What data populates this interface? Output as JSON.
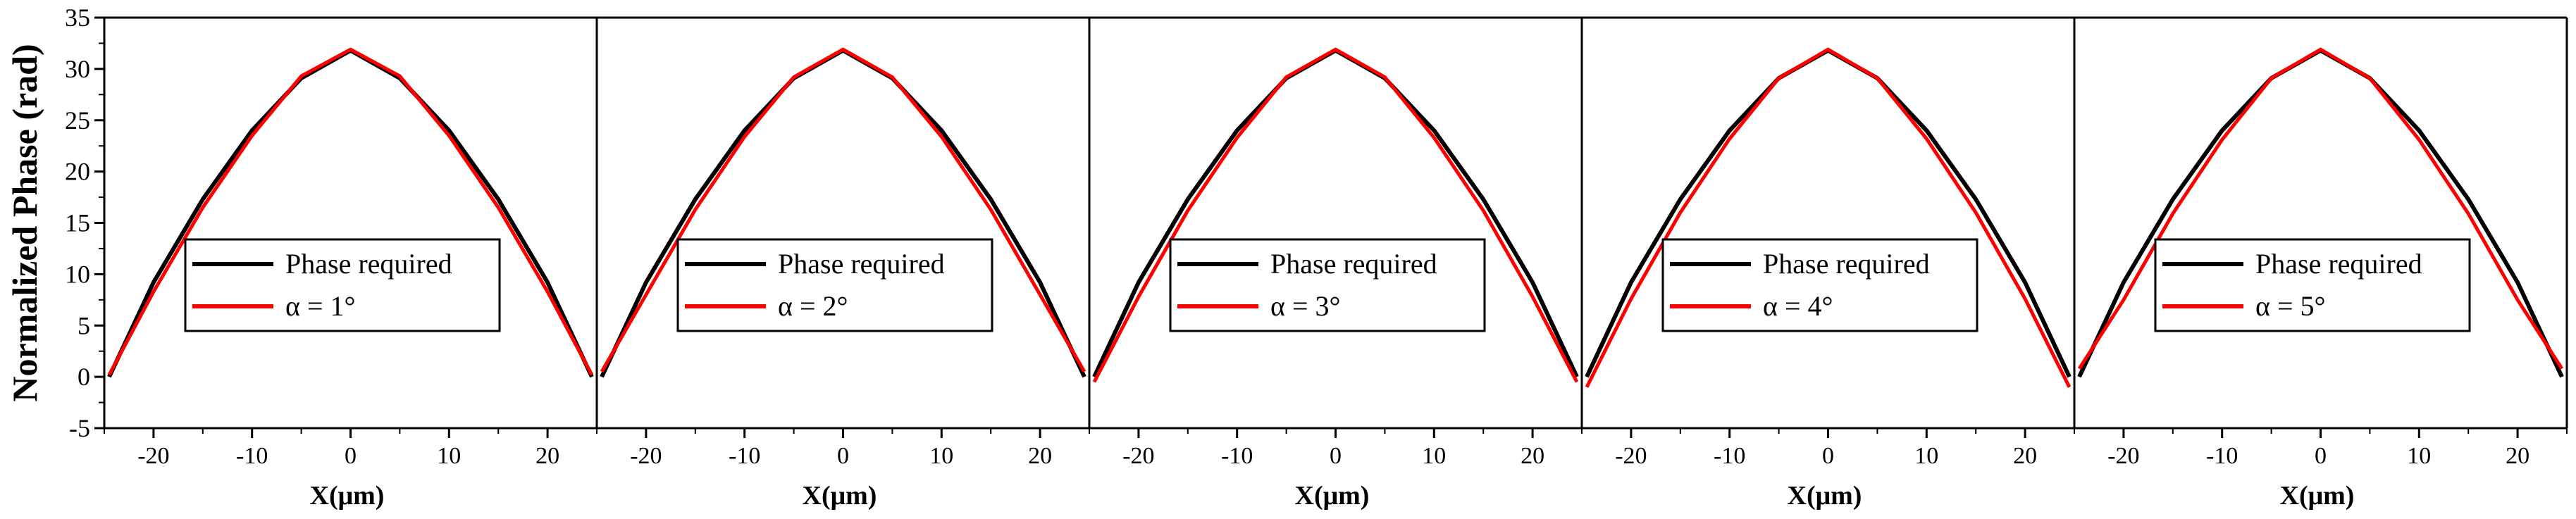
{
  "figure": {
    "ylabel": "Normalized Phase (rad)",
    "xlabel": "X(μm)",
    "y_ticks": [
      -5,
      0,
      5,
      10,
      15,
      20,
      25,
      30,
      35
    ],
    "x_ticks": [
      -20,
      -10,
      0,
      10,
      20
    ],
    "colors": {
      "required": "#000000",
      "simulated": "#ff0000",
      "axis": "#000000"
    }
  },
  "chart_data": [
    {
      "type": "line",
      "title": "",
      "xlabel": "X(μm)",
      "ylabel": "Normalized Phase (rad)",
      "xlim": [
        -25,
        25
      ],
      "ylim": [
        -5,
        35
      ],
      "series": [
        {
          "name": "Phase required",
          "x": [
            -24.5,
            -20,
            -15,
            -10,
            -5,
            0,
            5,
            10,
            15,
            20,
            24.5
          ],
          "values": [
            0,
            9.2,
            17.3,
            24.0,
            29.1,
            31.8,
            29.1,
            24.0,
            17.3,
            9.2,
            0
          ]
        },
        {
          "name": "α = 1°",
          "x": [
            -24.5,
            -20,
            -15,
            -10,
            -5,
            0,
            5,
            10,
            15,
            20,
            24.5
          ],
          "values": [
            0.2,
            8.3,
            16.5,
            23.5,
            29.3,
            31.9,
            29.3,
            23.5,
            16.5,
            8.3,
            0.2
          ]
        }
      ]
    },
    {
      "type": "line",
      "title": "",
      "xlabel": "X(μm)",
      "ylabel": "",
      "xlim": [
        -25,
        25
      ],
      "ylim": [
        -5,
        35
      ],
      "series": [
        {
          "name": "Phase required",
          "x": [
            -24.5,
            -20,
            -15,
            -10,
            -5,
            0,
            5,
            10,
            15,
            20,
            24.5
          ],
          "values": [
            0,
            9.2,
            17.3,
            24.0,
            29.1,
            31.8,
            29.1,
            24.0,
            17.3,
            9.2,
            0
          ]
        },
        {
          "name": "α = 2°",
          "x": [
            -24.5,
            -20,
            -15,
            -10,
            -5,
            0,
            5,
            10,
            15,
            20,
            24.5
          ],
          "values": [
            0.5,
            8.0,
            16.3,
            23.4,
            29.2,
            31.9,
            29.2,
            23.4,
            16.3,
            8.0,
            0.5
          ]
        }
      ]
    },
    {
      "type": "line",
      "title": "",
      "xlabel": "X(μm)",
      "ylabel": "",
      "xlim": [
        -25,
        25
      ],
      "ylim": [
        -5,
        35
      ],
      "series": [
        {
          "name": "Phase required",
          "x": [
            -24.5,
            -20,
            -15,
            -10,
            -5,
            0,
            5,
            10,
            15,
            20,
            24.5
          ],
          "values": [
            0,
            9.2,
            17.3,
            24.0,
            29.1,
            31.8,
            29.1,
            24.0,
            17.3,
            9.2,
            0
          ]
        },
        {
          "name": "α = 3°",
          "x": [
            -24.5,
            -20,
            -15,
            -10,
            -5,
            0,
            5,
            10,
            15,
            20,
            24.5
          ],
          "values": [
            -0.5,
            7.8,
            16.2,
            23.3,
            29.2,
            31.9,
            29.2,
            23.3,
            16.2,
            7.8,
            -0.5
          ]
        }
      ]
    },
    {
      "type": "line",
      "title": "",
      "xlabel": "X(μm)",
      "ylabel": "",
      "xlim": [
        -25,
        25
      ],
      "ylim": [
        -5,
        35
      ],
      "series": [
        {
          "name": "Phase required",
          "x": [
            -24.5,
            -20,
            -15,
            -10,
            -5,
            0,
            5,
            10,
            15,
            20,
            24.5
          ],
          "values": [
            0,
            9.2,
            17.3,
            24.0,
            29.1,
            31.8,
            29.1,
            24.0,
            17.3,
            9.2,
            0
          ]
        },
        {
          "name": "α = 4°",
          "x": [
            -24.5,
            -20,
            -15,
            -10,
            -5,
            0,
            5,
            10,
            15,
            20,
            24.5
          ],
          "values": [
            -1.0,
            7.6,
            16.0,
            23.2,
            29.1,
            31.9,
            29.1,
            23.2,
            16.0,
            7.6,
            -1.0
          ]
        }
      ]
    },
    {
      "type": "line",
      "title": "",
      "xlabel": "X(μm)",
      "ylabel": "",
      "xlim": [
        -25,
        25
      ],
      "ylim": [
        -5,
        35
      ],
      "series": [
        {
          "name": "Phase required",
          "x": [
            -24.5,
            -20,
            -15,
            -10,
            -5,
            0,
            5,
            10,
            15,
            20,
            24.5
          ],
          "values": [
            0,
            9.2,
            17.3,
            24.0,
            29.1,
            31.8,
            29.1,
            24.0,
            17.3,
            9.2,
            0
          ]
        },
        {
          "name": "α = 5°",
          "x": [
            -24.5,
            -20,
            -15,
            -10,
            -5,
            0,
            5,
            10,
            15,
            20,
            24.5
          ],
          "values": [
            0.8,
            7.5,
            15.9,
            23.1,
            29.1,
            31.9,
            29.1,
            23.1,
            15.9,
            7.5,
            0.8
          ]
        }
      ]
    }
  ]
}
